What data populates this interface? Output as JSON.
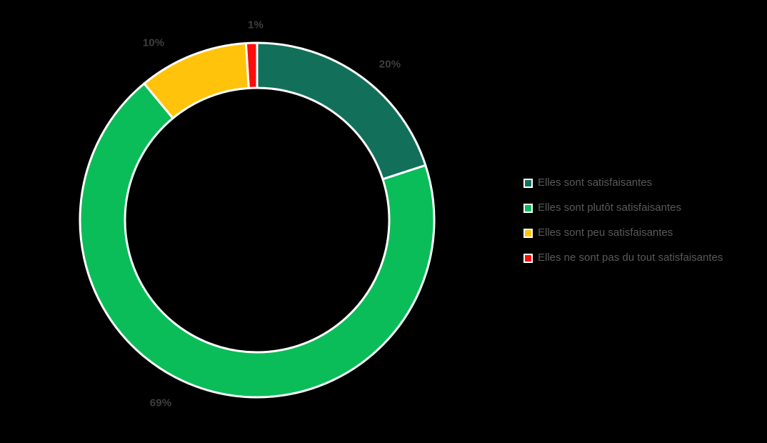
{
  "chart_data": {
    "type": "pie",
    "variant": "donut",
    "title": "",
    "legend_position": "right",
    "background": "#000000",
    "separator_color": "#FFFFFF",
    "label_color": "#3F3F3F",
    "legend_text_color": "#595959",
    "categories": [
      "Elles sont satisfaisantes",
      "Elles sont plutôt satisfaisantes",
      "Elles sont peu satisfaisantes",
      "Elles ne sont pas du tout satisfaisantes"
    ],
    "values": [
      20,
      69,
      10,
      1
    ],
    "slices": [
      {
        "label": "Elles sont satisfaisantes",
        "value": 20,
        "pct_label": "20%",
        "color": "#12705A"
      },
      {
        "label": "Elles sont plutôt satisfaisantes",
        "value": 69,
        "pct_label": "69%",
        "color": "#0ABD58"
      },
      {
        "label": "Elles sont peu satisfaisantes",
        "value": 10,
        "pct_label": "10%",
        "color": "#FFC30B"
      },
      {
        "label": "Elles ne sont pas du tout satisfaisantes",
        "value": 1,
        "pct_label": "1%",
        "color": "#FB0D0B"
      }
    ]
  }
}
